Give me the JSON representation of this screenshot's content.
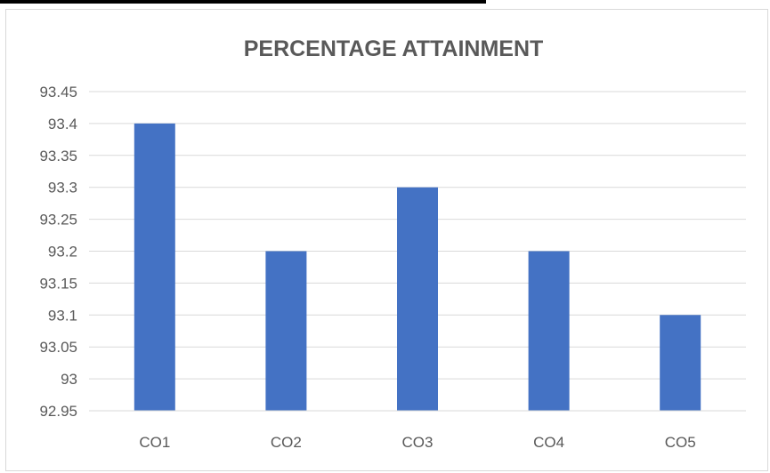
{
  "chart_data": {
    "type": "bar",
    "title": "PERCENTAGE ATTAINMENT",
    "categories": [
      "CO1",
      "CO2",
      "CO3",
      "CO4",
      "CO5"
    ],
    "values": [
      93.4,
      93.2,
      93.3,
      93.2,
      93.1
    ],
    "ylim": [
      92.95,
      93.45
    ],
    "yticks": [
      "92.95",
      "93",
      "93.05",
      "93.1",
      "93.15",
      "93.2",
      "93.25",
      "93.3",
      "93.35",
      "93.4",
      "93.45"
    ],
    "grid": true,
    "legend": "none",
    "bar_color": "#4472c4",
    "grid_color": "#d9d9d9",
    "text_color": "#595959"
  }
}
